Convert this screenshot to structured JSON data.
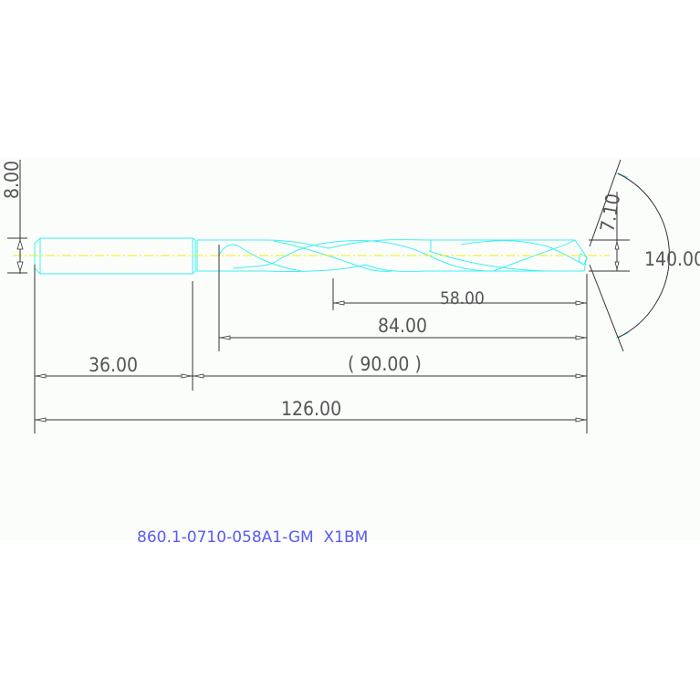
{
  "drawing": {
    "part_number": "860.1-0710-058A1-GM  X1BM",
    "dimensions": {
      "diameter_shank": "8.00",
      "diameter_drill": "7.10",
      "point_angle": "140.00",
      "flute_length": "58.00",
      "body_length": "84.00",
      "shank_length": "36.00",
      "reference_length": "( 90.00 )",
      "overall_length": "126.00"
    },
    "colors": {
      "outline": "#3ff0f0",
      "centerline": "#f0f000",
      "dimension": "#333333",
      "part_label": "#5a5af0",
      "sheet": "#fbfdfb"
    }
  }
}
